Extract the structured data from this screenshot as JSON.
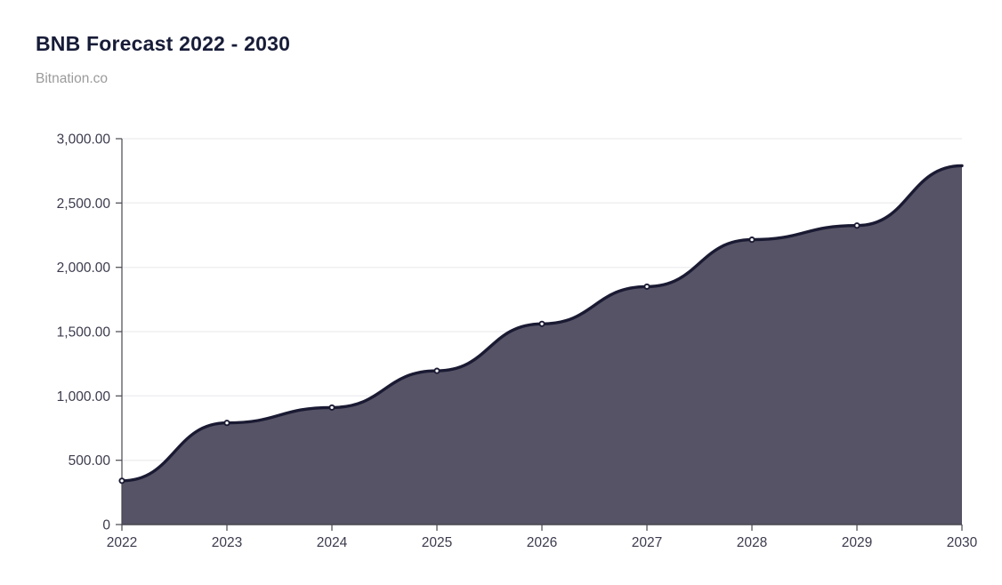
{
  "header": {
    "title": "BNB Forecast 2022 - 2030",
    "subtitle": "Bitnation.co"
  },
  "chart_data": {
    "type": "area",
    "title": "BNB Forecast 2022 - 2030",
    "subtitle": "Bitnation.co",
    "categories": [
      "2022",
      "2023",
      "2024",
      "2025",
      "2026",
      "2027",
      "2028",
      "2029",
      "2030"
    ],
    "values": [
      340,
      790,
      910,
      1195,
      1560,
      1850,
      2215,
      2325,
      2790
    ],
    "xlabel": "",
    "ylabel": "",
    "ylim": [
      0,
      3000
    ],
    "y_tick_step": 500,
    "y_tick_labels": [
      "0",
      "500.00",
      "1,000.00",
      "1,500.00",
      "2,000.00",
      "2,500.00",
      "3,000.00"
    ],
    "grid": "horizontal-only",
    "legend": "none",
    "curve": "smooth",
    "marker": "circle-on-all-points-except-last",
    "colors": {
      "area_fill": "#565366",
      "line": "#1a1a33",
      "marker_fill": "#ffffff",
      "marker_stroke": "#1a1a33",
      "grid_line": "#efeff2",
      "axis_line": "#47474f",
      "tick_label": "#3b3b4d",
      "title": "#171c38",
      "subtitle": "#9b9b9b"
    }
  }
}
